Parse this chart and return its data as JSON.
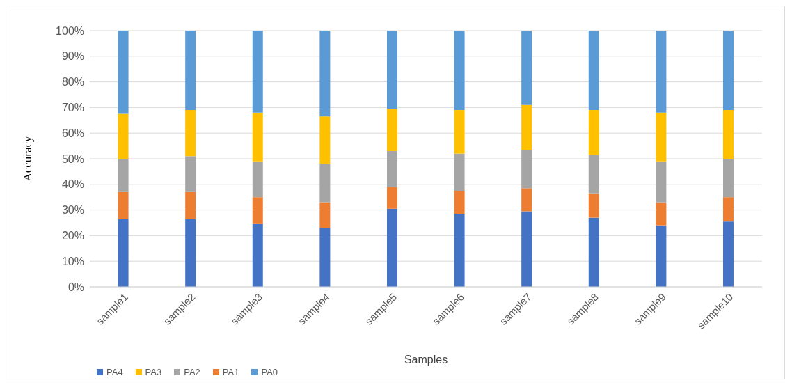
{
  "chart_data": {
    "type": "bar",
    "stacked": true,
    "xlabel": "Samples",
    "ylabel": "Accuracy",
    "grid": "y",
    "legend": "bottom left",
    "categories": [
      "sample1",
      "sample2",
      "sample3",
      "sample4",
      "sample5",
      "sample6",
      "sample7",
      "sample8",
      "sample9",
      "sample10"
    ],
    "series": [
      {
        "name": "PA4",
        "color": "#4472c4",
        "values": [
          26.5,
          26.5,
          24.5,
          23,
          30.5,
          28.5,
          29.5,
          27,
          24,
          25.5
        ]
      },
      {
        "name": "PA1",
        "color": "#ed7d31",
        "values": [
          10.5,
          10.5,
          10.5,
          10,
          8.5,
          9,
          9,
          9.5,
          9,
          9.5
        ]
      },
      {
        "name": "PA2",
        "color": "#a5a5a5",
        "values": [
          13,
          14,
          14,
          15,
          14,
          14.5,
          15,
          15,
          16,
          15
        ]
      },
      {
        "name": "PA3",
        "color": "#ffc000",
        "values": [
          17.5,
          18,
          19,
          18.5,
          16.5,
          17,
          17.5,
          17.5,
          19,
          19
        ]
      },
      {
        "name": "PA0",
        "color": "#5b9bd5",
        "values": [
          32.5,
          31,
          32,
          33.5,
          30.5,
          31,
          29,
          31,
          32,
          31
        ]
      }
    ],
    "ylim": [
      0,
      100
    ],
    "yticks": [
      {
        "value": 0,
        "label": "0%"
      },
      {
        "value": 10,
        "label": "10%"
      },
      {
        "value": 20,
        "label": "20%"
      },
      {
        "value": 30,
        "label": "30%"
      },
      {
        "value": 40,
        "label": "40%"
      },
      {
        "value": 50,
        "label": "50%"
      },
      {
        "value": 60,
        "label": "60%"
      },
      {
        "value": 70,
        "label": "70%"
      },
      {
        "value": 80,
        "label": "80%"
      },
      {
        "value": 90,
        "label": "90%"
      },
      {
        "value": 100,
        "label": "100%"
      }
    ]
  }
}
